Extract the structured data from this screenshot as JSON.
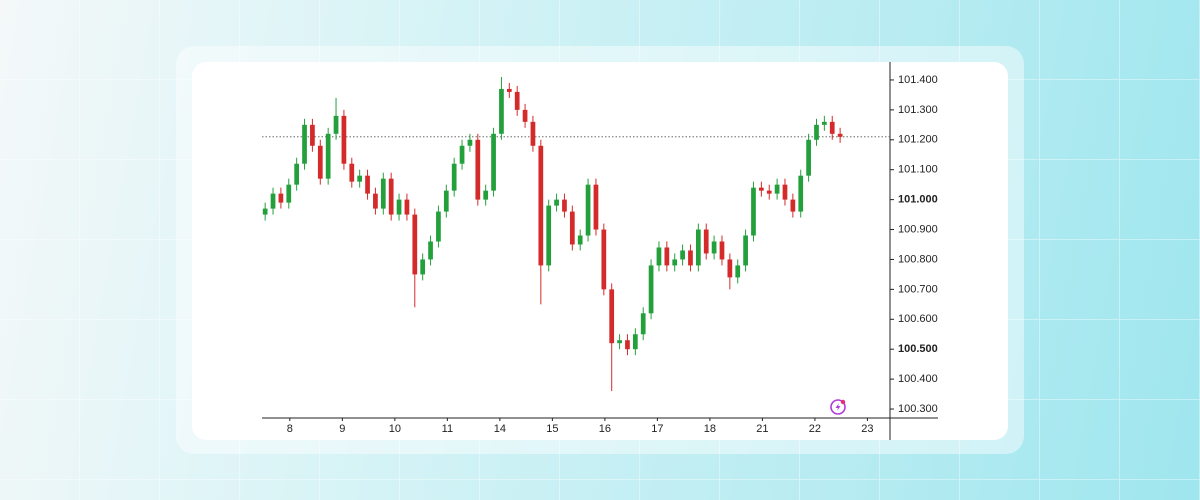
{
  "chart_data": {
    "type": "candlestick",
    "x": [
      -0.47,
      -0.32,
      -0.17,
      -0.02,
      0.13,
      0.28,
      0.43,
      0.58,
      0.73,
      0.88,
      1.03,
      1.18,
      1.33,
      1.48,
      1.63,
      1.78,
      1.93,
      2.08,
      2.23,
      2.38,
      2.53,
      2.68,
      2.83,
      2.98,
      3.13,
      3.28,
      3.43,
      3.58,
      3.73,
      3.88,
      4.03,
      4.18,
      4.33,
      4.48,
      4.63,
      4.78,
      4.93,
      5.08,
      5.23,
      5.38,
      5.53,
      5.68,
      5.83,
      5.98,
      6.13,
      6.28,
      6.43,
      6.58,
      6.73,
      6.88,
      7.03,
      7.18,
      7.33,
      7.48,
      7.63,
      7.78,
      7.93,
      8.08,
      8.23,
      8.38,
      8.53,
      8.68,
      8.83,
      8.98,
      9.13,
      9.28,
      9.43,
      9.58,
      9.73,
      9.88,
      10.03,
      10.18,
      10.33,
      10.48
    ],
    "open": [
      100.95,
      100.97,
      101.02,
      100.99,
      101.05,
      101.12,
      101.25,
      101.18,
      101.07,
      101.22,
      101.28,
      101.12,
      101.06,
      101.08,
      101.02,
      100.97,
      101.07,
      100.95,
      101.0,
      100.95,
      100.75,
      100.8,
      100.86,
      100.96,
      101.03,
      101.12,
      101.18,
      101.2,
      101.0,
      101.03,
      101.22,
      101.37,
      101.36,
      101.3,
      101.26,
      101.18,
      100.78,
      100.98,
      101.0,
      100.96,
      100.85,
      100.88,
      101.05,
      100.9,
      100.7,
      100.52,
      100.53,
      100.5,
      100.55,
      100.62,
      100.78,
      100.84,
      100.78,
      100.8,
      100.83,
      100.78,
      100.9,
      100.82,
      100.86,
      100.8,
      100.74,
      100.78,
      100.88,
      101.04,
      101.03,
      101.02,
      101.05,
      101.0,
      100.96,
      101.08,
      101.2,
      101.25,
      101.26,
      101.22
    ],
    "high": [
      100.99,
      101.04,
      101.04,
      101.07,
      101.14,
      101.27,
      101.27,
      101.2,
      101.24,
      101.34,
      101.3,
      101.14,
      101.1,
      101.1,
      101.04,
      101.09,
      101.09,
      101.02,
      101.02,
      100.97,
      100.82,
      100.88,
      100.98,
      101.05,
      101.14,
      101.2,
      101.22,
      101.22,
      101.05,
      101.24,
      101.41,
      101.39,
      101.38,
      101.32,
      101.28,
      101.2,
      101.0,
      101.02,
      101.02,
      100.98,
      100.9,
      101.07,
      101.07,
      100.92,
      100.72,
      100.55,
      100.55,
      100.57,
      100.64,
      100.8,
      100.86,
      100.86,
      100.82,
      100.85,
      100.85,
      100.92,
      100.92,
      100.88,
      100.88,
      100.82,
      100.8,
      100.9,
      101.06,
      101.06,
      101.05,
      101.07,
      101.07,
      101.02,
      101.1,
      101.22,
      101.27,
      101.28,
      101.28,
      101.24
    ],
    "low": [
      100.93,
      100.95,
      100.97,
      100.97,
      101.03,
      101.1,
      101.16,
      101.05,
      101.05,
      101.2,
      101.1,
      101.04,
      101.04,
      101.0,
      100.95,
      100.95,
      100.93,
      100.93,
      100.93,
      100.64,
      100.73,
      100.78,
      100.84,
      100.94,
      101.01,
      101.1,
      101.16,
      100.98,
      100.98,
      101.01,
      101.2,
      101.34,
      101.28,
      101.24,
      101.16,
      100.65,
      100.76,
      100.96,
      100.94,
      100.83,
      100.83,
      100.86,
      100.88,
      100.68,
      100.36,
      100.5,
      100.48,
      100.48,
      100.53,
      100.6,
      100.76,
      100.76,
      100.76,
      100.78,
      100.76,
      100.76,
      100.8,
      100.8,
      100.78,
      100.7,
      100.72,
      100.76,
      100.86,
      101.01,
      101.0,
      101.0,
      100.98,
      100.94,
      100.94,
      101.06,
      101.18,
      101.23,
      101.2,
      101.19
    ],
    "close": [
      100.97,
      101.02,
      100.99,
      101.05,
      101.12,
      101.25,
      101.18,
      101.07,
      101.22,
      101.28,
      101.12,
      101.06,
      101.08,
      101.02,
      100.97,
      101.07,
      100.95,
      101.0,
      100.95,
      100.75,
      100.8,
      100.86,
      100.96,
      101.03,
      101.12,
      101.18,
      101.2,
      101.0,
      101.03,
      101.22,
      101.37,
      101.36,
      101.3,
      101.26,
      101.18,
      100.78,
      100.98,
      101.0,
      100.96,
      100.85,
      100.88,
      101.05,
      100.9,
      100.7,
      100.52,
      100.53,
      100.5,
      100.55,
      100.62,
      100.78,
      100.84,
      100.78,
      100.8,
      100.83,
      100.78,
      100.9,
      100.82,
      100.86,
      100.8,
      100.74,
      100.78,
      100.88,
      101.04,
      101.03,
      101.02,
      101.05,
      101.0,
      100.96,
      101.08,
      101.2,
      101.25,
      101.26,
      101.22,
      101.21
    ],
    "up_color": "#23a03c",
    "down_color": "#d42a2a",
    "last_price_line": true,
    "xlim": [
      -0.53,
      11.43
    ],
    "xticks": [
      {
        "value": 0,
        "label": "8"
      },
      {
        "value": 1,
        "label": "9"
      },
      {
        "value": 2,
        "label": "10"
      },
      {
        "value": 3,
        "label": "11"
      },
      {
        "value": 4,
        "label": "14"
      },
      {
        "value": 5,
        "label": "15"
      },
      {
        "value": 6,
        "label": "16"
      },
      {
        "value": 7,
        "label": "17"
      },
      {
        "value": 8,
        "label": "18"
      },
      {
        "value": 9,
        "label": "21"
      },
      {
        "value": 10,
        "label": "22"
      },
      {
        "value": 11,
        "label": "23"
      }
    ],
    "ylim": [
      100.27,
      101.46
    ],
    "yticks": [
      {
        "value": 101.4,
        "label": "101.400"
      },
      {
        "value": 101.3,
        "label": "101.300"
      },
      {
        "value": 101.2,
        "label": "101.200"
      },
      {
        "value": 101.1,
        "label": "101.100"
      },
      {
        "value": 101.0,
        "label": "101.000",
        "bold": true
      },
      {
        "value": 100.9,
        "label": "100.900"
      },
      {
        "value": 100.8,
        "label": "100.800"
      },
      {
        "value": 100.7,
        "label": "100.700"
      },
      {
        "value": 100.6,
        "label": "100.600"
      },
      {
        "value": 100.5,
        "label": "100.500",
        "bold": true
      },
      {
        "value": 100.4,
        "label": "100.400"
      },
      {
        "value": 100.3,
        "label": "100.300"
      }
    ]
  }
}
